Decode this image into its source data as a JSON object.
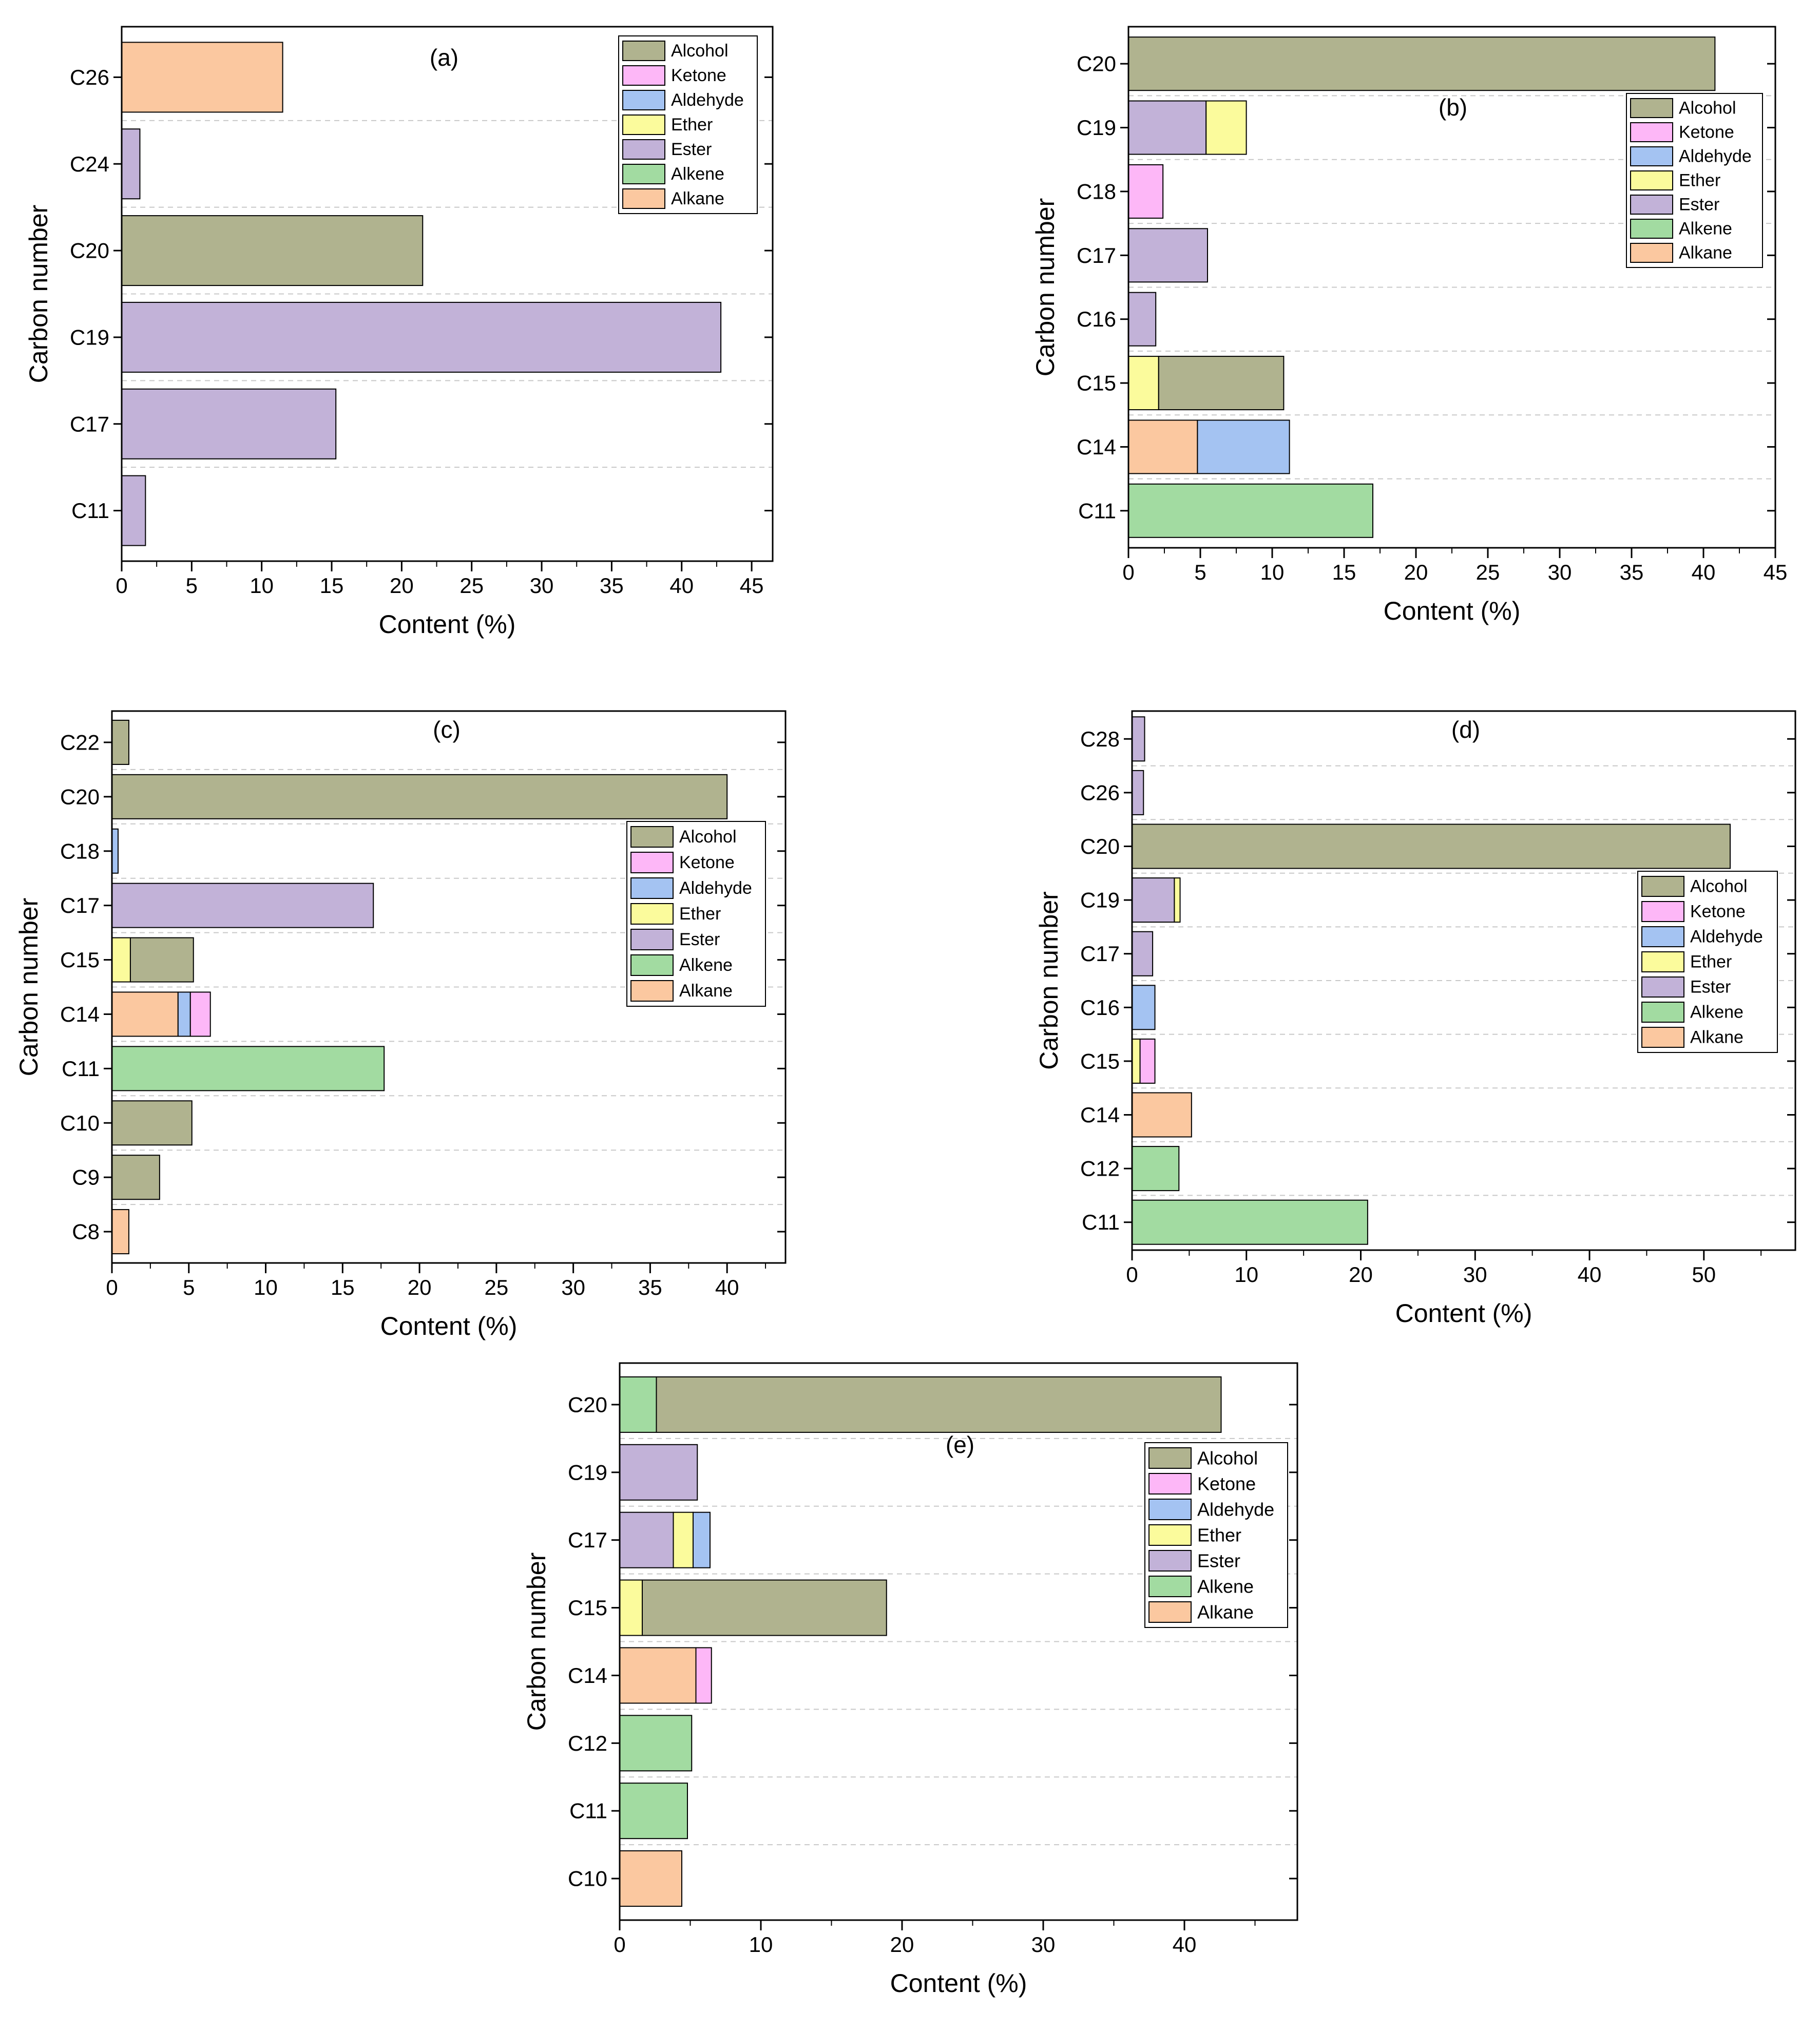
{
  "colors": {
    "Alcohol": "#b0b38f",
    "Ketone": "#fdb7f7",
    "Aldehyde": "#a4c3f2",
    "Ether": "#fbfb9c",
    "Ester": "#c2b2d8",
    "Alkene": "#a2dba1",
    "Alkane": "#fbc8a0"
  },
  "chart_data": [
    {
      "type": "bar",
      "orientation": "horizontal",
      "stacked": true,
      "panel_label": "(a)",
      "xlabel": "Content (%)",
      "ylabel": "Carbon number",
      "xlim": [
        0,
        46.5
      ],
      "xticks": [
        0,
        5,
        10,
        15,
        20,
        25,
        30,
        35,
        40,
        45
      ],
      "grid": "horizontal dashed",
      "legend": {
        "position": "top-right",
        "entries": [
          "Alcohol",
          "Ketone",
          "Aldehyde",
          "Ether",
          "Ester",
          "Alkene",
          "Alkane"
        ]
      },
      "categories": [
        "C11",
        "C17",
        "C19",
        "C20",
        "C24",
        "C26"
      ],
      "bars": [
        {
          "category": "C11",
          "segments": [
            {
              "class": "Ester",
              "value": 1.7
            }
          ]
        },
        {
          "category": "C17",
          "segments": [
            {
              "class": "Ester",
              "value": 15.3
            }
          ]
        },
        {
          "category": "C19",
          "segments": [
            {
              "class": "Ester",
              "value": 42.8
            }
          ]
        },
        {
          "category": "C20",
          "segments": [
            {
              "class": "Alcohol",
              "value": 21.5
            }
          ]
        },
        {
          "category": "C24",
          "segments": [
            {
              "class": "Ester",
              "value": 1.3
            }
          ]
        },
        {
          "category": "C26",
          "segments": [
            {
              "class": "Alkane",
              "value": 11.5
            }
          ]
        }
      ]
    },
    {
      "type": "bar",
      "orientation": "horizontal",
      "stacked": true,
      "panel_label": "(b)",
      "xlabel": "Content (%)",
      "ylabel": "Carbon number",
      "xlim": [
        0,
        45
      ],
      "xticks": [
        0,
        5,
        10,
        15,
        20,
        25,
        30,
        35,
        40,
        45
      ],
      "grid": "horizontal dashed",
      "legend": {
        "position": "top-right",
        "entries": [
          "Alcohol",
          "Ketone",
          "Aldehyde",
          "Ether",
          "Ester",
          "Alkene",
          "Alkane"
        ]
      },
      "categories": [
        "C11",
        "C14",
        "C15",
        "C16",
        "C17",
        "C18",
        "C19",
        "C20"
      ],
      "bars": [
        {
          "category": "C11",
          "segments": [
            {
              "class": "Alkene",
              "value": 17.0
            }
          ]
        },
        {
          "category": "C14",
          "segments": [
            {
              "class": "Alkane",
              "value": 4.8
            },
            {
              "class": "Aldehyde",
              "value": 6.4
            }
          ]
        },
        {
          "category": "C15",
          "segments": [
            {
              "class": "Ether",
              "value": 2.1
            },
            {
              "class": "Alcohol",
              "value": 8.7
            }
          ]
        },
        {
          "category": "C16",
          "segments": [
            {
              "class": "Ester",
              "value": 1.9
            }
          ]
        },
        {
          "category": "C17",
          "segments": [
            {
              "class": "Ester",
              "value": 5.5
            }
          ]
        },
        {
          "category": "C18",
          "segments": [
            {
              "class": "Ketone",
              "value": 2.4
            }
          ]
        },
        {
          "category": "C19",
          "segments": [
            {
              "class": "Ester",
              "value": 5.4
            },
            {
              "class": "Ether",
              "value": 2.8
            }
          ]
        },
        {
          "category": "C20",
          "segments": [
            {
              "class": "Alcohol",
              "value": 40.8
            }
          ]
        }
      ]
    },
    {
      "type": "bar",
      "orientation": "horizontal",
      "stacked": true,
      "panel_label": "(c)",
      "xlabel": "Content (%)",
      "ylabel": "Carbon number",
      "xlim": [
        0,
        43.8
      ],
      "xticks": [
        0,
        5,
        10,
        15,
        20,
        25,
        30,
        35,
        40
      ],
      "grid": "horizontal dashed",
      "legend": {
        "position": "top-right",
        "entries": [
          "Alcohol",
          "Ketone",
          "Aldehyde",
          "Ether",
          "Ester",
          "Alkene",
          "Alkane"
        ]
      },
      "categories": [
        "C8",
        "C9",
        "C10",
        "C11",
        "C14",
        "C15",
        "C17",
        "C18",
        "C20",
        "C22"
      ],
      "bars": [
        {
          "category": "C8",
          "segments": [
            {
              "class": "Alkane",
              "value": 1.1
            }
          ]
        },
        {
          "category": "C9",
          "segments": [
            {
              "class": "Alcohol",
              "value": 3.1
            }
          ]
        },
        {
          "category": "C10",
          "segments": [
            {
              "class": "Alcohol",
              "value": 5.2
            }
          ]
        },
        {
          "category": "C11",
          "segments": [
            {
              "class": "Alkene",
              "value": 17.7
            }
          ]
        },
        {
          "category": "C14",
          "segments": [
            {
              "class": "Alkane",
              "value": 4.3
            },
            {
              "class": "Aldehyde",
              "value": 0.8
            },
            {
              "class": "Ketone",
              "value": 1.3
            }
          ]
        },
        {
          "category": "C15",
          "segments": [
            {
              "class": "Ether",
              "value": 1.2
            },
            {
              "class": "Alcohol",
              "value": 4.1
            }
          ]
        },
        {
          "category": "C17",
          "segments": [
            {
              "class": "Ester",
              "value": 17.0
            }
          ]
        },
        {
          "category": "C18",
          "segments": [
            {
              "class": "Aldehyde",
              "value": 0.4
            }
          ]
        },
        {
          "category": "C20",
          "segments": [
            {
              "class": "Alcohol",
              "value": 40.0
            }
          ]
        },
        {
          "category": "C22",
          "segments": [
            {
              "class": "Alcohol",
              "value": 1.1
            }
          ]
        }
      ]
    },
    {
      "type": "bar",
      "orientation": "horizontal",
      "stacked": true,
      "panel_label": "(d)",
      "xlabel": "Content (%)",
      "ylabel": "Carbon number",
      "xlim": [
        0,
        58
      ],
      "xticks": [
        0,
        10,
        20,
        30,
        40,
        50
      ],
      "grid": "horizontal dashed",
      "legend": {
        "position": "right",
        "entries": [
          "Alcohol",
          "Ketone",
          "Aldehyde",
          "Ether",
          "Ester",
          "Alkene",
          "Alkane"
        ]
      },
      "categories": [
        "C11",
        "C12",
        "C14",
        "C15",
        "C16",
        "C17",
        "C19",
        "C20",
        "C26",
        "C28"
      ],
      "bars": [
        {
          "category": "C11",
          "segments": [
            {
              "class": "Alkene",
              "value": 20.6
            }
          ]
        },
        {
          "category": "C12",
          "segments": [
            {
              "class": "Alkene",
              "value": 4.1
            }
          ]
        },
        {
          "category": "C14",
          "segments": [
            {
              "class": "Alkane",
              "value": 5.2
            }
          ]
        },
        {
          "category": "C15",
          "segments": [
            {
              "class": "Ether",
              "value": 0.7
            },
            {
              "class": "Ketone",
              "value": 1.3
            }
          ]
        },
        {
          "category": "C16",
          "segments": [
            {
              "class": "Aldehyde",
              "value": 2.0
            }
          ]
        },
        {
          "category": "C17",
          "segments": [
            {
              "class": "Ester",
              "value": 1.8
            }
          ]
        },
        {
          "category": "C19",
          "segments": [
            {
              "class": "Ester",
              "value": 3.7
            },
            {
              "class": "Ether",
              "value": 0.5
            }
          ]
        },
        {
          "category": "C20",
          "segments": [
            {
              "class": "Alcohol",
              "value": 52.3
            }
          ]
        },
        {
          "category": "C26",
          "segments": [
            {
              "class": "Ester",
              "value": 1.0
            }
          ]
        },
        {
          "category": "C28",
          "segments": [
            {
              "class": "Ester",
              "value": 1.1
            }
          ]
        }
      ]
    },
    {
      "type": "bar",
      "orientation": "horizontal",
      "stacked": true,
      "panel_label": "(e)",
      "xlabel": "Content (%)",
      "ylabel": "Carbon number",
      "xlim": [
        0,
        48
      ],
      "xticks": [
        0,
        10,
        20,
        30,
        40
      ],
      "grid": "horizontal dashed",
      "legend": {
        "position": "top-right",
        "entries": [
          "Alcohol",
          "Ketone",
          "Aldehyde",
          "Ether",
          "Ester",
          "Alkene",
          "Alkane"
        ]
      },
      "categories": [
        "C10",
        "C11",
        "C12",
        "C14",
        "C15",
        "C17",
        "C19",
        "C20"
      ],
      "bars": [
        {
          "category": "C10",
          "segments": [
            {
              "class": "Alkane",
              "value": 4.4
            }
          ]
        },
        {
          "category": "C11",
          "segments": [
            {
              "class": "Alkene",
              "value": 4.8
            }
          ]
        },
        {
          "category": "C12",
          "segments": [
            {
              "class": "Alkene",
              "value": 5.1
            }
          ]
        },
        {
          "category": "C14",
          "segments": [
            {
              "class": "Alkane",
              "value": 5.4
            },
            {
              "class": "Ketone",
              "value": 1.1
            }
          ]
        },
        {
          "category": "C15",
          "segments": [
            {
              "class": "Ether",
              "value": 1.6
            },
            {
              "class": "Alcohol",
              "value": 17.3
            }
          ]
        },
        {
          "category": "C17",
          "segments": [
            {
              "class": "Ester",
              "value": 3.8
            },
            {
              "class": "Ether",
              "value": 1.4
            },
            {
              "class": "Aldehyde",
              "value": 1.2
            }
          ]
        },
        {
          "category": "C19",
          "segments": [
            {
              "class": "Ester",
              "value": 5.5
            }
          ]
        },
        {
          "category": "C20",
          "segments": [
            {
              "class": "Alkene",
              "value": 2.6
            },
            {
              "class": "Alcohol",
              "value": 40.0
            }
          ]
        }
      ]
    }
  ]
}
